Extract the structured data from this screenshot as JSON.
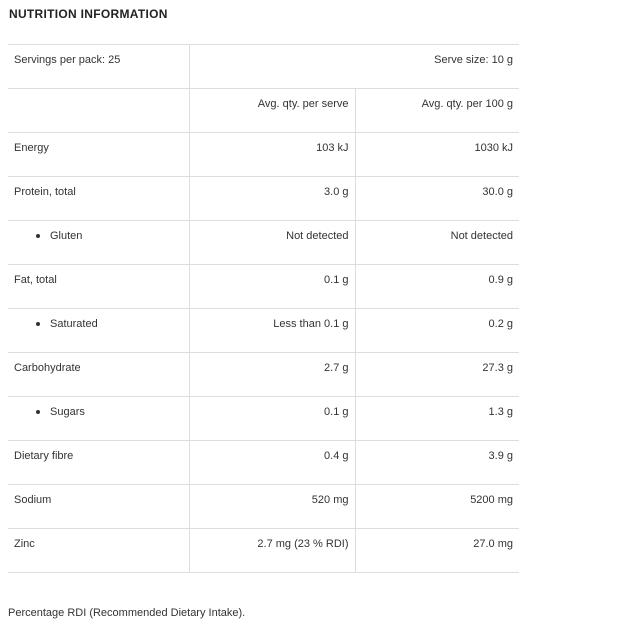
{
  "title": "NUTRITION INFORMATION",
  "servings_per_pack": "Servings per pack: 25",
  "serve_size": "Serve size: 10 g",
  "headers": [
    "",
    "Avg. qty. per serve",
    "Avg. qty. per 100 g"
  ],
  "rows": [
    {
      "name": "Energy",
      "per_serve": "103 kJ",
      "per_100g": "1030 kJ",
      "sub": false
    },
    {
      "name": "Protein, total",
      "per_serve": "3.0 g",
      "per_100g": "30.0 g",
      "sub": false
    },
    {
      "name": "Gluten",
      "per_serve": "Not detected",
      "per_100g": "Not detected",
      "sub": true
    },
    {
      "name": "Fat, total",
      "per_serve": "0.1 g",
      "per_100g": "0.9 g",
      "sub": false
    },
    {
      "name": "Saturated",
      "per_serve": "Less than 0.1 g",
      "per_100g": "0.2 g",
      "sub": true
    },
    {
      "name": "Carbohydrate",
      "per_serve": "2.7 g",
      "per_100g": "27.3 g",
      "sub": false
    },
    {
      "name": "Sugars",
      "per_serve": "0.1 g",
      "per_100g": "1.3 g",
      "sub": true
    },
    {
      "name": "Dietary fibre",
      "per_serve": "0.4 g",
      "per_100g": "3.9 g",
      "sub": false
    },
    {
      "name": "Sodium",
      "per_serve": "520 mg",
      "per_100g": "5200 mg",
      "sub": false
    },
    {
      "name": "Zinc",
      "per_serve": "2.7 mg (23 % RDI)",
      "per_100g": "27.0 mg",
      "sub": false
    }
  ],
  "footnote": "Percentage RDI (Recommended Dietary Intake)."
}
